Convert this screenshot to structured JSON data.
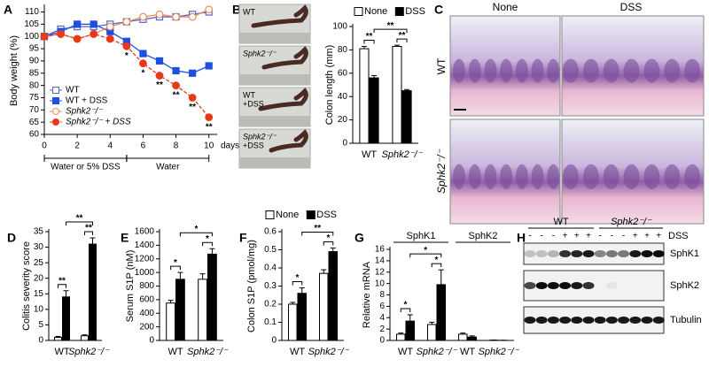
{
  "panel_labels": [
    "A",
    "B",
    "C",
    "D",
    "E",
    "F",
    "G",
    "H"
  ],
  "chart_data": [
    {
      "type": "line",
      "ylabel": "Body weight (%)",
      "xlabel": "days",
      "x": [
        0,
        1,
        2,
        3,
        4,
        5,
        6,
        7,
        8,
        9,
        10
      ],
      "xlim": [
        0,
        10.5
      ],
      "xticks": [
        0,
        2,
        4,
        6,
        8,
        10
      ],
      "ylim": [
        60,
        112
      ],
      "yticks": [
        60,
        65,
        70,
        75,
        80,
        85,
        90,
        95,
        100,
        105,
        110
      ],
      "legend": "lower left",
      "series": [
        {
          "name": "WT",
          "color": "#5565c8",
          "marker": "square",
          "filled": false,
          "dashed": false,
          "values": [
            100,
            103,
            104,
            104,
            105,
            106,
            107,
            108,
            108,
            109,
            110
          ]
        },
        {
          "name": "WT + DSS",
          "color": "#1d4fe0",
          "marker": "square",
          "filled": true,
          "dashed": false,
          "values": [
            100,
            102,
            105,
            105,
            102,
            98,
            93,
            90,
            86,
            85,
            88
          ]
        },
        {
          "name": "Sphk2⁻/⁻",
          "color": "#ee8a5e",
          "marker": "circle",
          "filled": false,
          "dashed": false,
          "values": [
            100,
            101,
            99,
            101,
            104,
            106,
            108,
            109,
            108,
            108,
            111
          ]
        },
        {
          "name": "Sphk2⁻/⁻ + DSS",
          "color": "#e8381a",
          "marker": "circle",
          "filled": true,
          "dashed": true,
          "values": [
            100,
            101,
            99,
            101,
            99,
            96,
            89,
            84,
            80,
            75,
            67
          ]
        }
      ],
      "annotations": [
        {
          "x": 5,
          "text": "*"
        },
        {
          "x": 6,
          "text": "*"
        },
        {
          "x": 7,
          "text": "**"
        },
        {
          "x": 8,
          "text": "**"
        },
        {
          "x": 9,
          "text": "**"
        },
        {
          "x": 10,
          "text": "**"
        }
      ],
      "periods": [
        {
          "label": "Water or 5% DSS",
          "from": 0,
          "to": 5
        },
        {
          "label": "Water",
          "from": 5,
          "to": 10
        }
      ]
    },
    {
      "type": "bar",
      "ylabel": "Colon length (mm)",
      "categories": [
        "WT",
        "Sphk2⁻/⁻"
      ],
      "ylim": [
        0,
        100
      ],
      "yticks": [
        0,
        20,
        40,
        60,
        80,
        100
      ],
      "legend": "top",
      "series": [
        {
          "name": "None",
          "color": "#ffffff",
          "values": [
            81,
            83
          ],
          "errors": [
            2,
            1
          ]
        },
        {
          "name": "DSS",
          "color": "#000000",
          "values": [
            56,
            45
          ],
          "errors": [
            2,
            1
          ]
        }
      ],
      "annotations": [
        "**",
        "**",
        "**"
      ]
    },
    {
      "type": "bar",
      "ylabel": "Colitis severity score",
      "categories": [
        "WT",
        "Sphk2⁻/⁻"
      ],
      "ylim": [
        0,
        35
      ],
      "yticks": [
        0,
        5,
        10,
        15,
        20,
        25,
        30,
        35
      ],
      "legend": "top",
      "series": [
        {
          "name": "None",
          "color": "#ffffff",
          "values": [
            1,
            1.5
          ],
          "errors": [
            0.3,
            0.3
          ]
        },
        {
          "name": "DSS",
          "color": "#000000",
          "values": [
            14,
            31
          ],
          "errors": [
            2,
            2
          ]
        }
      ],
      "annotations": [
        "**",
        "**",
        "**"
      ]
    },
    {
      "type": "bar",
      "ylabel": "Serum S1P (nM)",
      "categories": [
        "WT",
        "Sphk2⁻/⁻"
      ],
      "ylim": [
        0,
        1600
      ],
      "yticks": [
        0,
        200,
        400,
        600,
        800,
        1000,
        1200,
        1400,
        1600
      ],
      "series": [
        {
          "color": "#ffffff",
          "values": [
            550,
            900
          ],
          "errors": [
            40,
            80
          ]
        },
        {
          "color": "#000000",
          "values": [
            900,
            1270
          ],
          "errors": [
            100,
            80
          ]
        }
      ],
      "annotations": [
        "*",
        "*",
        "*"
      ]
    },
    {
      "type": "bar",
      "ylabel": "Colon S1P (pmol/mg)",
      "categories": [
        "WT",
        "Sphk2⁻/⁻"
      ],
      "ylim": [
        0,
        0.6
      ],
      "yticks": [
        0,
        0.1,
        0.2,
        0.3,
        0.4,
        0.5,
        0.6
      ],
      "series": [
        {
          "color": "#ffffff",
          "values": [
            0.2,
            0.37
          ],
          "errors": [
            0.01,
            0.02
          ]
        },
        {
          "color": "#000000",
          "values": [
            0.26,
            0.49
          ],
          "errors": [
            0.03,
            0.02
          ]
        }
      ],
      "annotations": [
        "*",
        "*",
        "**"
      ]
    },
    {
      "type": "bar",
      "ylabel": "Relative mRNA",
      "categories": [
        "WT",
        "Sphk2⁻/⁻",
        "WT",
        "Sphk2⁻/⁻"
      ],
      "ylim": [
        0,
        16
      ],
      "yticks": [
        0,
        2,
        4,
        6,
        8,
        10,
        12,
        14,
        16
      ],
      "groups": [
        {
          "label": "SphK1",
          "from": 0,
          "to": 1
        },
        {
          "label": "SphK2",
          "from": 2,
          "to": 3
        }
      ],
      "series": [
        {
          "color": "#ffffff",
          "values": [
            1.1,
            2.8,
            1.1,
            0.05
          ],
          "errors": [
            0.2,
            0.4,
            0.2,
            0.02
          ]
        },
        {
          "color": "#000000",
          "values": [
            3.4,
            9.8,
            0.6,
            0.02
          ],
          "errors": [
            1.1,
            2.6,
            0.2,
            0.01
          ]
        }
      ],
      "annotations": [
        "*",
        "*",
        "*"
      ]
    }
  ],
  "photos": {
    "labels": [
      [
        "WT"
      ],
      [
        "Sphk2⁻/⁻"
      ],
      [
        "WT",
        "+DSS"
      ],
      [
        "Sphk2⁻/⁻",
        "+DSS"
      ]
    ]
  },
  "histology": {
    "columns": [
      "None",
      "DSS"
    ],
    "rows": [
      "WT",
      "Sphk2⁻/⁻"
    ]
  },
  "blot": {
    "groups": [
      "WT",
      "Sphk2⁻/⁻"
    ],
    "treatment": "DSS",
    "lanes": [
      "-",
      "-",
      "-",
      "+",
      "+",
      "+",
      "-",
      "-",
      "-",
      "+",
      "+",
      "+"
    ],
    "bands": [
      "SphK1",
      "SphK2",
      "Tubulin"
    ]
  }
}
